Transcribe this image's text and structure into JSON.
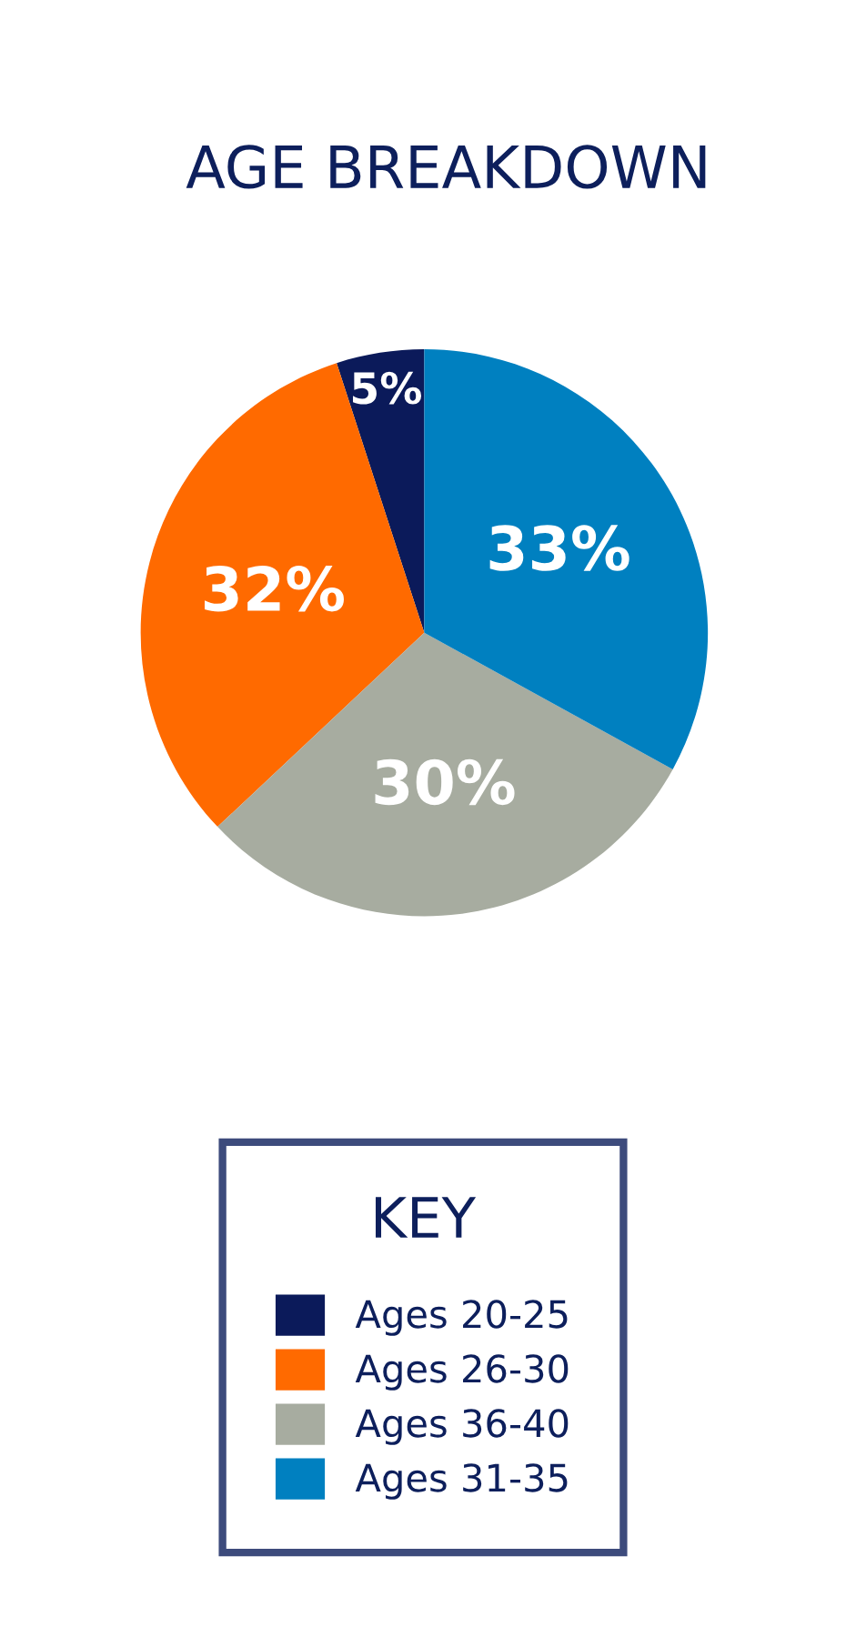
{
  "chart_data": {
    "type": "pie",
    "title": "AGE BREAKDOWN",
    "legend_title": "KEY",
    "categories": [
      "Ages 20-25",
      "Ages 26-30",
      "Ages 36-40",
      "Ages 31-35"
    ],
    "values": [
      5,
      32,
      30,
      33
    ],
    "colors": [
      "#0b1a5a",
      "#ff6a00",
      "#a7aca0",
      "#0080c0"
    ],
    "value_labels": [
      "5%",
      "32%",
      "30%",
      "33%"
    ],
    "legend": "bottom"
  }
}
